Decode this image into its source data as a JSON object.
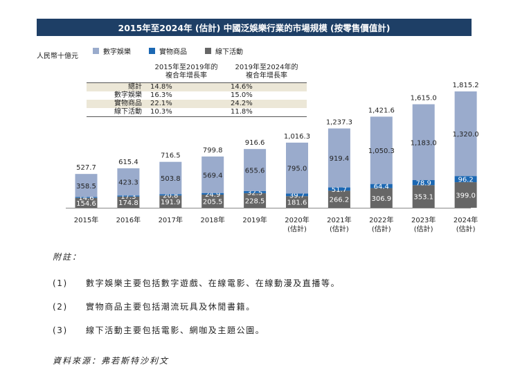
{
  "title": "2015年至2024年 (估計) 中國泛娛樂行業的市場規模 (按零售價值計)",
  "unit": "人民幣十億元",
  "colors": {
    "digital": "#9aabcc",
    "physical": "#1c68b3",
    "offline": "#666666",
    "header": "#1e3f66",
    "row_shade": "#ece7d7"
  },
  "legend": [
    {
      "name": "數字娛樂",
      "color": "#9aabcc"
    },
    {
      "name": "實物商品",
      "color": "#1c68b3"
    },
    {
      "name": "線下活動",
      "color": "#666666"
    }
  ],
  "cagr_table": {
    "header": [
      "2015年至2019年的\n複合年增長率",
      "2019年至2024年的\n複合年增長率"
    ],
    "rows": [
      {
        "name": "總計",
        "v1": "14.8%",
        "v2": "14.6%"
      },
      {
        "name": "數字娛樂",
        "v1": "16.3%",
        "v2": "15.0%"
      },
      {
        "name": "實物商品",
        "v1": "22.1%",
        "v2": "24.2%"
      },
      {
        "name": "線下活動",
        "v1": "10.3%",
        "v2": "11.8%"
      }
    ]
  },
  "chart_data": {
    "type": "bar",
    "stacked": true,
    "categories": [
      "2015年",
      "2016年",
      "2017年",
      "2018年",
      "2019年",
      "2020年\n(估計)",
      "2021年\n(估計)",
      "2022年\n(估計)",
      "2023年\n(估計)",
      "2024年\n(估計)"
    ],
    "series": [
      {
        "name": "線下活動",
        "values": [
          154.6,
          174.8,
          191.9,
          205.5,
          228.5,
          181.6,
          266.2,
          306.9,
          353.1,
          399.0
        ],
        "labels": [
          "154.6",
          "174.8",
          "191.9",
          "205.5",
          "228.5",
          "181.6",
          "266.2",
          "306.9",
          "353.1",
          "399.0"
        ]
      },
      {
        "name": "實物商品",
        "values": [
          14.6,
          17.3,
          20.8,
          24.9,
          32.5,
          39.7,
          51.7,
          64.4,
          78.9,
          96.2
        ],
        "labels": [
          "14.6",
          "17.3",
          "20.8",
          "24.9",
          "32.5",
          "39.7",
          "51.7",
          "64.4",
          "78.9",
          "96.2"
        ]
      },
      {
        "name": "數字娛樂",
        "values": [
          358.5,
          423.3,
          503.8,
          569.4,
          655.6,
          795.0,
          919.4,
          1050.3,
          1183.0,
          1320.0
        ],
        "labels": [
          "358.5",
          "423.3",
          "503.8",
          "569.4",
          "655.6",
          "795.0",
          "919.4",
          "1,050.3",
          "1,183.0",
          "1,320.0"
        ]
      }
    ],
    "totals": [
      527.7,
      615.4,
      716.5,
      799.8,
      916.6,
      1016.3,
      1237.3,
      1421.6,
      1615.0,
      1815.2
    ],
    "total_labels": [
      "527.7",
      "615.4",
      "716.5",
      "799.8",
      "916.6",
      "1,016.3",
      "1,237.3",
      "1,421.6",
      "1,615.0",
      "1,815.2"
    ],
    "ylim": [
      0,
      1815.2
    ],
    "xlabel": "",
    "ylabel": "",
    "legend_position": "top-left",
    "grid": false
  },
  "notes": {
    "heading": "附註：",
    "items": [
      {
        "num": "(1)",
        "text": "數字娛樂主要包括數字遊戲、在線電影、在線動漫及直播等。"
      },
      {
        "num": "(2)",
        "text": "實物商品主要包括潮流玩具及休閒書籍。"
      },
      {
        "num": "(3)",
        "text": "線下活動主要包括電影、網咖及主題公園。"
      }
    ],
    "source": "資料來源：弗若斯特沙利文"
  }
}
